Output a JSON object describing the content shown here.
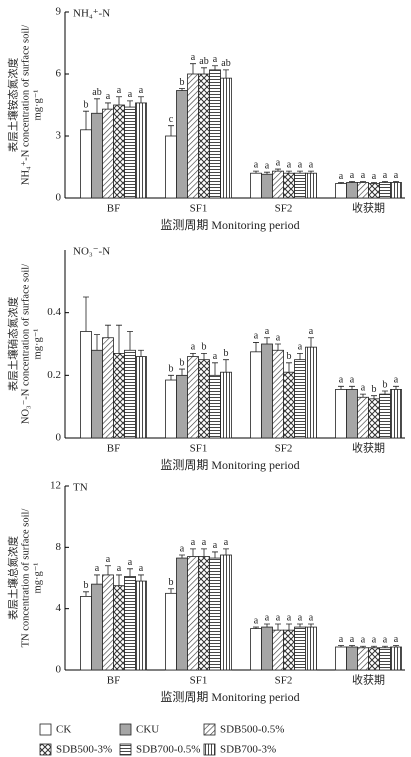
{
  "chart_data": [
    {
      "type": "bar",
      "label": "NH₄⁺-N",
      "ylabel": [
        "表层土壤铵态氮浓度",
        "NH₄⁺-N concentration of surface soil/",
        "mg·g⁻¹"
      ],
      "xlabel": "监测周期 Monitoring period",
      "categories": [
        "BF",
        "SF1",
        "SF2",
        "收获期"
      ],
      "ylim": [
        0,
        9
      ],
      "yticks": [
        0,
        3,
        6,
        9
      ],
      "series": [
        {
          "name": "CK",
          "color": "#ffffff",
          "pattern": "none",
          "values": [
            3.3,
            3.0,
            1.2,
            0.7
          ],
          "errors": [
            0.9,
            0.5,
            0.1,
            0.05
          ],
          "letters": [
            "b",
            "c",
            "a",
            "a"
          ]
        },
        {
          "name": "CKU",
          "color": "#a6a6a6",
          "pattern": "none",
          "values": [
            4.1,
            5.2,
            1.15,
            0.75
          ],
          "errors": [
            0.7,
            0.1,
            0.1,
            0.05
          ],
          "letters": [
            "ab",
            "b",
            "a",
            "a"
          ]
        },
        {
          "name": "SDB500-0.5%",
          "color": "#ffffff",
          "pattern": "diagonal",
          "values": [
            4.3,
            6.0,
            1.3,
            0.75
          ],
          "errors": [
            0.3,
            0.5,
            0.1,
            0.05
          ],
          "letters": [
            "a",
            "a",
            "a",
            "a"
          ]
        },
        {
          "name": "SDB500-3%",
          "color": "#ffffff",
          "pattern": "zigzag",
          "values": [
            4.5,
            6.0,
            1.2,
            0.7
          ],
          "errors": [
            0.4,
            0.3,
            0.1,
            0.05
          ],
          "letters": [
            "a",
            "ab",
            "a",
            "a"
          ]
        },
        {
          "name": "SDB700-0.5%",
          "color": "#ffffff",
          "pattern": "horizontal",
          "values": [
            4.4,
            6.2,
            1.2,
            0.75
          ],
          "errors": [
            0.3,
            0.2,
            0.1,
            0.05
          ],
          "letters": [
            "a",
            "a",
            "a",
            "a"
          ]
        },
        {
          "name": "SDB700-3%",
          "color": "#ffffff",
          "pattern": "vertical",
          "values": [
            4.6,
            5.8,
            1.2,
            0.75
          ],
          "errors": [
            0.3,
            0.4,
            0.1,
            0.05
          ],
          "letters": [
            "a",
            "ab",
            "a",
            "a"
          ]
        }
      ]
    },
    {
      "type": "bar",
      "label": "NO₃⁻-N",
      "ylabel": [
        "表层土壤硝态氮浓度",
        "NO₃⁻-N concentration of surface soil/",
        "mg·g⁻¹"
      ],
      "xlabel": "监测周期 Monitoring period",
      "categories": [
        "BF",
        "SF1",
        "SF2",
        "收获期"
      ],
      "ylim": [
        0,
        0.6
      ],
      "yticks": [
        0,
        0.2,
        0.4
      ],
      "series": [
        {
          "color": "#ffffff",
          "pattern": "none",
          "values": [
            0.34,
            0.185,
            0.275,
            0.155
          ],
          "errors": [
            0.11,
            0.015,
            0.03,
            0.01
          ],
          "letters": [
            null,
            "b",
            "a",
            "a"
          ]
        },
        {
          "color": "#a6a6a6",
          "pattern": "none",
          "values": [
            0.28,
            0.2,
            0.3,
            0.155
          ],
          "errors": [
            0.05,
            0.02,
            0.02,
            0.01
          ],
          "letters": [
            null,
            "b",
            "a",
            "a"
          ]
        },
        {
          "color": "#ffffff",
          "pattern": "diagonal",
          "values": [
            0.32,
            0.26,
            0.28,
            0.13
          ],
          "errors": [
            0.04,
            0.01,
            0.02,
            0.01
          ],
          "letters": [
            null,
            "a",
            "a",
            "a"
          ]
        },
        {
          "color": "#ffffff",
          "pattern": "zigzag",
          "values": [
            0.27,
            0.25,
            0.21,
            0.125
          ],
          "errors": [
            0.09,
            0.02,
            0.03,
            0.01
          ],
          "letters": [
            null,
            "b",
            "b",
            "b"
          ]
        },
        {
          "color": "#ffffff",
          "pattern": "horizontal",
          "values": [
            0.28,
            0.2,
            0.25,
            0.14
          ],
          "errors": [
            0.06,
            0.04,
            0.02,
            0.01
          ],
          "letters": [
            null,
            "a",
            "a",
            "b"
          ]
        },
        {
          "color": "#ffffff",
          "pattern": "vertical",
          "values": [
            0.26,
            0.21,
            0.29,
            0.155
          ],
          "errors": [
            0.02,
            0.04,
            0.03,
            0.01
          ],
          "letters": [
            null,
            "b",
            "a",
            "a"
          ]
        }
      ]
    },
    {
      "type": "bar",
      "label": "TN",
      "ylabel": [
        "表层土壤总氮浓度",
        "TN concentration of surface soil/",
        "mg·g⁻¹"
      ],
      "xlabel": "监测周期 Monitoring period",
      "categories": [
        "BF",
        "SF1",
        "SF2",
        "收获期"
      ],
      "ylim": [
        0,
        12
      ],
      "yticks": [
        0,
        4,
        8,
        12
      ],
      "series": [
        {
          "color": "#ffffff",
          "pattern": "none",
          "values": [
            4.8,
            5.0,
            2.7,
            1.5
          ],
          "errors": [
            0.3,
            0.3,
            0.1,
            0.1
          ],
          "letters": [
            "b",
            "b",
            "a",
            "a"
          ]
        },
        {
          "color": "#a6a6a6",
          "pattern": "none",
          "values": [
            5.6,
            7.3,
            2.8,
            1.5
          ],
          "errors": [
            0.6,
            0.2,
            0.2,
            0.1
          ],
          "letters": [
            "a",
            "a",
            "a",
            "a"
          ]
        },
        {
          "color": "#ffffff",
          "pattern": "diagonal",
          "values": [
            6.2,
            7.4,
            2.6,
            1.45
          ],
          "errors": [
            0.6,
            0.5,
            0.4,
            0.1
          ],
          "letters": [
            "a",
            "a",
            "a",
            "a"
          ]
        },
        {
          "color": "#ffffff",
          "pattern": "zigzag",
          "values": [
            5.5,
            7.4,
            2.6,
            1.45
          ],
          "errors": [
            0.7,
            0.5,
            0.4,
            0.1
          ],
          "letters": [
            "a",
            "a",
            "a",
            "a"
          ]
        },
        {
          "color": "#ffffff",
          "pattern": "horizontal",
          "values": [
            6.1,
            7.3,
            2.8,
            1.45
          ],
          "errors": [
            0.5,
            0.4,
            0.2,
            0.1
          ],
          "letters": [
            "a",
            "a",
            "a",
            "a"
          ]
        },
        {
          "color": "#ffffff",
          "pattern": "vertical",
          "values": [
            5.8,
            7.5,
            2.8,
            1.5
          ],
          "errors": [
            0.4,
            0.4,
            0.2,
            0.1
          ],
          "letters": [
            "a",
            "a",
            "a",
            "a"
          ]
        }
      ]
    }
  ]
}
